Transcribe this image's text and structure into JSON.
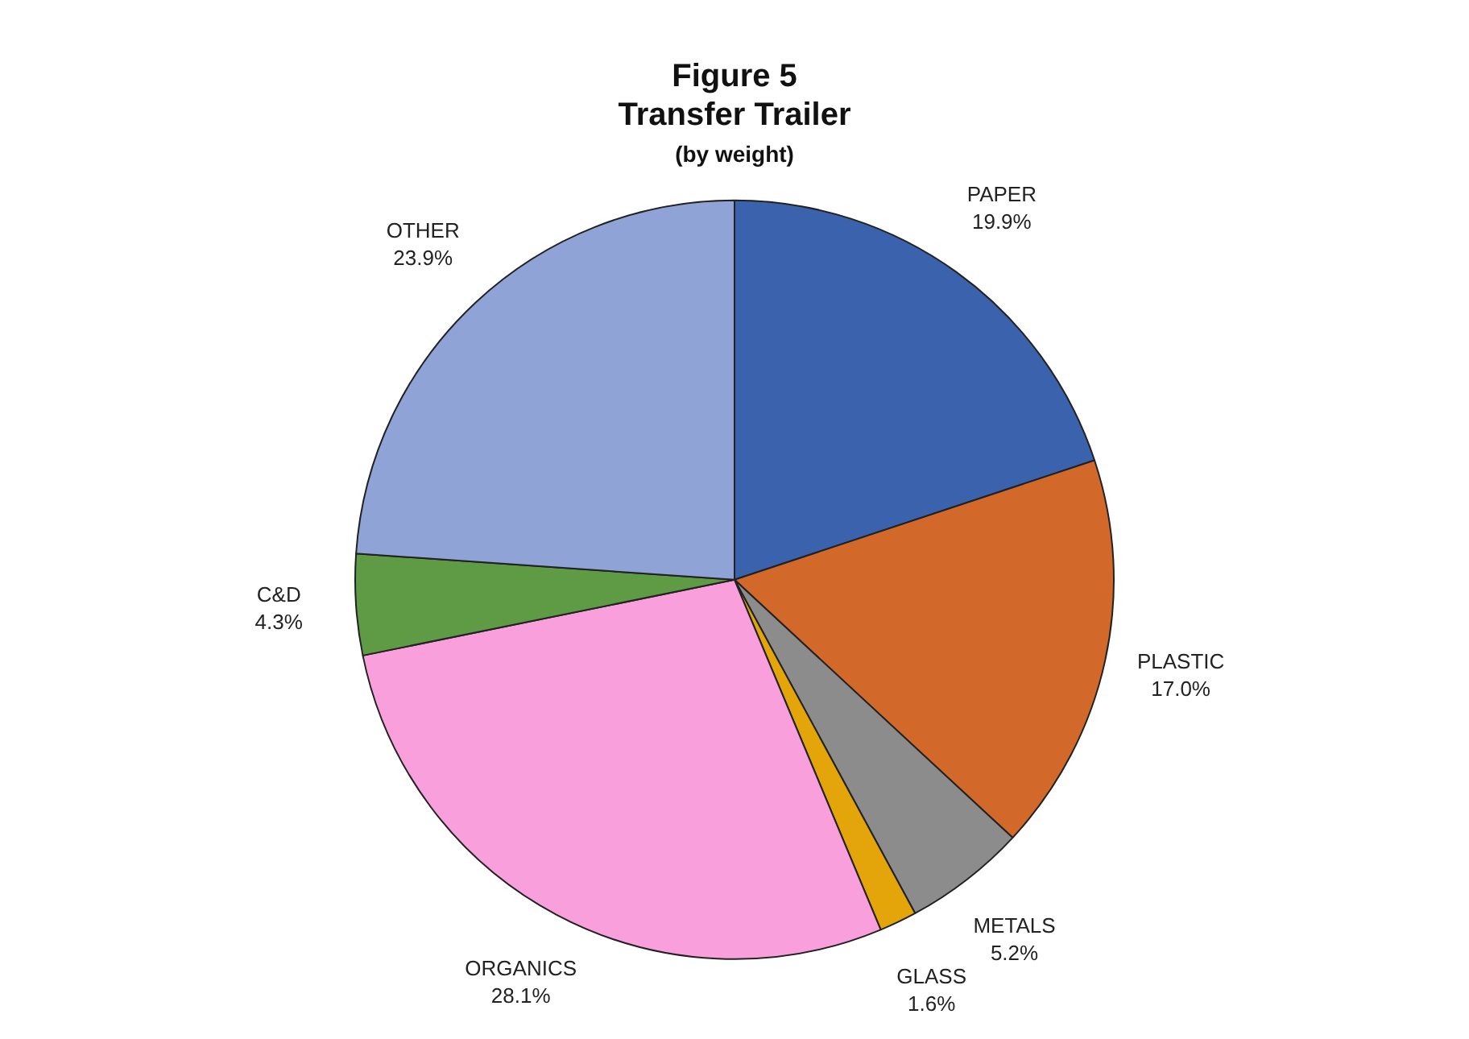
{
  "chart_data": {
    "type": "pie",
    "title": "Figure 5\nTransfer Trailer",
    "subtitle": "(by weight)",
    "categories": [
      "PAPER",
      "PLASTIC",
      "METALS",
      "GLASS",
      "ORGANICS",
      "C&D",
      "OTHER"
    ],
    "values": [
      19.9,
      17.0,
      5.2,
      1.6,
      28.1,
      4.3,
      23.9
    ],
    "value_labels": [
      "19.9%",
      "17.0%",
      "5.2%",
      "1.6%",
      "28.1%",
      "4.3%",
      "23.9%"
    ],
    "colors": [
      "#3a62ad",
      "#d2692a",
      "#8c8c8c",
      "#e3a50a",
      "#f99fdc",
      "#5e9b44",
      "#8fa3d6"
    ],
    "legend": false
  }
}
